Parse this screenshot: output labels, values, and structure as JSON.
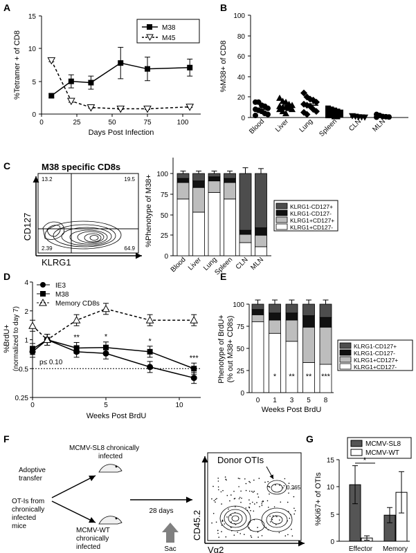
{
  "figure": {
    "panels": {
      "A": "A",
      "B": "B",
      "C": "C",
      "D": "D",
      "E": "E",
      "F": "F",
      "G": "G"
    }
  },
  "panelA": {
    "xlabel": "Days Post Infection",
    "ylabel": "%Tetramer + of CD8",
    "xticks": [
      "0",
      "25",
      "50",
      "75",
      "100"
    ],
    "yticks": [
      "0",
      "5",
      "10",
      "15"
    ]
  },
  "panelB": {
    "ylabel": "%M38+ of CD8",
    "yticks": [
      "0",
      "20",
      "40",
      "60",
      "80",
      "100"
    ]
  },
  "panelC": {
    "flow_title": "M38 specific CD8s",
    "flow_x": "KLRG1",
    "flow_y": "CD127",
    "quadrants": [
      "13.2",
      "19.5",
      "2.39",
      "64.9"
    ],
    "ylabel": "%Phenotype of M38+",
    "yticks": [
      "0",
      "25",
      "50",
      "75",
      "100"
    ]
  },
  "panelD": {
    "xlabel": "Weeks Post BrdU",
    "ylabel": "%BrdU+",
    "ylabel2": "(normalized to day 7)",
    "xticks": [
      "0",
      "5",
      "10"
    ],
    "yticks": [
      "0.25",
      "0.5",
      "1",
      "2",
      "4"
    ],
    "pval": "p≤ 0.10",
    "stars": [
      "**",
      "*",
      "*",
      "***"
    ]
  },
  "panelE": {
    "xlabel": "Weeks Post BrdU",
    "ylabel": "Phenotype of BrdU+",
    "ylabel2": "(% out M38+ CD8s)",
    "yticks": [
      "0",
      "25",
      "50",
      "75",
      "100"
    ],
    "stars": [
      "*",
      "**",
      "**",
      "***"
    ]
  },
  "panelF": {
    "sl8_label_1": "MCMV-SL8 chronically",
    "sl8_label_2": "infected",
    "adoptive_1": "Adoptive",
    "adoptive_2": "transfer",
    "otis_1": "OT-Is from",
    "otis_2": "chronically",
    "otis_3": "infected",
    "otis_4": "mice",
    "wt_1": "MCMV-WT",
    "wt_2": "chronically",
    "wt_3": "infected",
    "days": "28 days",
    "sac": "Sac",
    "donor": "Donor OTIs",
    "gate_value": "0.265",
    "flow_x": "Vα2",
    "flow_y": "CD45.2"
  },
  "panelG": {
    "ylabel": "%Ki67+ of OTIs",
    "yticks": [
      "0",
      "5",
      "10",
      "15"
    ],
    "star": "*"
  },
  "chart_data": [
    {
      "panel": "A",
      "type": "line",
      "xlabel": "Days Post Infection",
      "ylabel": "%Tetramer + of CD8",
      "xlim": [
        0,
        110
      ],
      "ylim": [
        0,
        15
      ],
      "series": [
        {
          "name": "M38",
          "x": [
            7,
            21,
            35,
            56,
            75,
            105
          ],
          "y": [
            2.8,
            5.0,
            4.8,
            7.8,
            6.9,
            7.1
          ],
          "err": [
            0.3,
            1.0,
            1.0,
            2.4,
            1.8,
            1.3
          ]
        },
        {
          "name": "M45",
          "x": [
            7,
            21,
            35,
            56,
            75,
            105
          ],
          "y": [
            8.2,
            2.0,
            1.0,
            0.8,
            0.8,
            1.1
          ],
          "err": [
            0.2,
            0.2,
            0.1,
            0.1,
            0.1,
            0.1
          ]
        }
      ]
    },
    {
      "panel": "B",
      "type": "scatter",
      "ylabel": "%M38+ of CD8",
      "ylim": [
        0,
        100
      ],
      "categories": [
        "Blood",
        "Liver",
        "Lung",
        "Spleen",
        "CLN",
        "MLN"
      ],
      "means": [
        8,
        10.5,
        12,
        4,
        0.6,
        0.8
      ],
      "sem": [
        1.4,
        1.2,
        1.5,
        0.5,
        0.2,
        0.2
      ],
      "points": [
        [
          15,
          15,
          12,
          11,
          9,
          8,
          7,
          6,
          4,
          3,
          2
        ],
        [
          19,
          16,
          15,
          13,
          12,
          11,
          10,
          10,
          9,
          8,
          8,
          6,
          4
        ],
        [
          24,
          20,
          18,
          17,
          15,
          13,
          12,
          11,
          8,
          6,
          5,
          3
        ],
        [
          9,
          8,
          7,
          6,
          5,
          5,
          4,
          4,
          3,
          3,
          2,
          2,
          1,
          1
        ],
        [
          1.5,
          1,
          0.5,
          0.3,
          0.2
        ],
        [
          3,
          2,
          1,
          0.8,
          0.5,
          0.3
        ]
      ]
    },
    {
      "panel": "C",
      "type": "bar",
      "stacked": true,
      "ylabel": "%Phenotype of M38+",
      "ylim": [
        0,
        120
      ],
      "categories": [
        "Blood",
        "Liver",
        "Lung",
        "Spleen",
        "CLN",
        "MLN"
      ],
      "series": [
        {
          "name": "KLRG1+CD127-",
          "values": [
            69,
            53,
            77,
            69,
            16,
            11
          ]
        },
        {
          "name": "KLRG1+CD127+",
          "values": [
            20,
            30,
            14,
            20,
            10,
            14
          ]
        },
        {
          "name": "KLRG1-CD127-",
          "values": [
            5,
            8,
            5,
            5,
            5,
            9
          ]
        },
        {
          "name": "KLRG1-CD127+",
          "values": [
            6,
            9,
            4,
            6,
            69,
            66
          ]
        }
      ],
      "errors": [
        3,
        3,
        3,
        3,
        7,
        6
      ]
    },
    {
      "panel": "D",
      "type": "line",
      "xlabel": "Weeks Post BrdU",
      "ylabel": "%BrdU+ (normalized to day 7)",
      "ylim": [
        0.25,
        4
      ],
      "log_scale": true,
      "series": [
        {
          "name": "IE3",
          "x": [
            0,
            1,
            3,
            5,
            8,
            11
          ],
          "y": [
            0.75,
            1.0,
            0.75,
            0.72,
            0.52,
            0.4
          ]
        },
        {
          "name": "M38",
          "x": [
            0,
            1,
            3,
            5,
            8,
            11
          ],
          "y": [
            0.8,
            1.0,
            0.82,
            0.83,
            0.75,
            0.5
          ]
        },
        {
          "name": "Memory CD8s",
          "x": [
            0,
            1,
            3,
            5,
            8,
            11
          ],
          "y": [
            1.4,
            1.0,
            1.6,
            2.1,
            1.6,
            1.6
          ]
        }
      ]
    },
    {
      "panel": "E",
      "type": "bar",
      "stacked": true,
      "xlabel": "Weeks Post BrdU",
      "ylabel": "Phenotype of BrdU+ (% out M38+ CD8s)",
      "ylim": [
        0,
        110
      ],
      "categories": [
        "0",
        "1",
        "3",
        "5",
        "8"
      ],
      "series": [
        {
          "name": "KLRG1+CD127-",
          "values": [
            80,
            67,
            58,
            34,
            32
          ]
        },
        {
          "name": "KLRG1+CD127+",
          "values": [
            8,
            15,
            24,
            40,
            42
          ]
        },
        {
          "name": "KLRG1-CD127-",
          "values": [
            6,
            8,
            8,
            13,
            11
          ]
        },
        {
          "name": "KLRG1-CD127+",
          "values": [
            6,
            10,
            10,
            13,
            15
          ]
        }
      ]
    },
    {
      "panel": "G",
      "type": "bar",
      "ylabel": "%Ki67+ of OTIs",
      "ylim": [
        0,
        15
      ],
      "categories": [
        "Effector",
        "Memory"
      ],
      "series": [
        {
          "name": "MCMV-SL8",
          "values": [
            10.4,
            4.8
          ],
          "err": [
            3.5,
            1.4
          ]
        },
        {
          "name": "MCMV-WT",
          "values": [
            0.6,
            9.0
          ],
          "err": [
            0.4,
            3.8
          ]
        }
      ]
    }
  ]
}
